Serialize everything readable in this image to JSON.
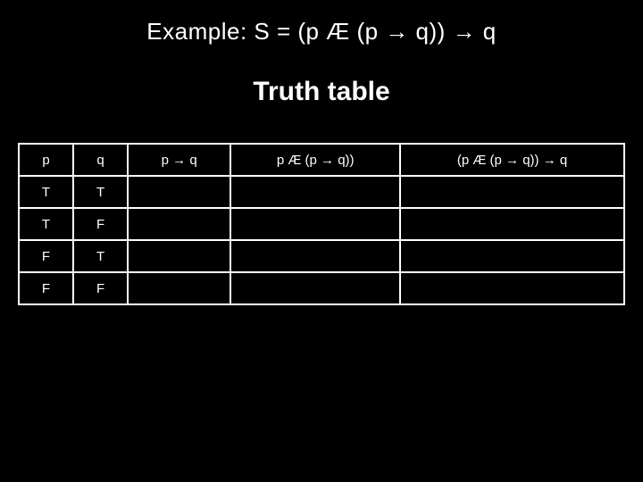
{
  "title": "Example: S = (p Æ (p → q)) → q",
  "subtitle": "Truth table",
  "table": {
    "headers": [
      "p",
      "q",
      "p → q",
      "p Æ (p → q))",
      "(p Æ (p → q)) → q"
    ],
    "rows": [
      [
        "T",
        "T",
        "",
        "",
        ""
      ],
      [
        "T",
        "F",
        "",
        "",
        ""
      ],
      [
        "F",
        "T",
        "",
        "",
        ""
      ],
      [
        "F",
        "F",
        "",
        "",
        ""
      ]
    ]
  },
  "colors": {
    "background": "#000000",
    "text": "#ffffff",
    "border": "#ffffff"
  }
}
